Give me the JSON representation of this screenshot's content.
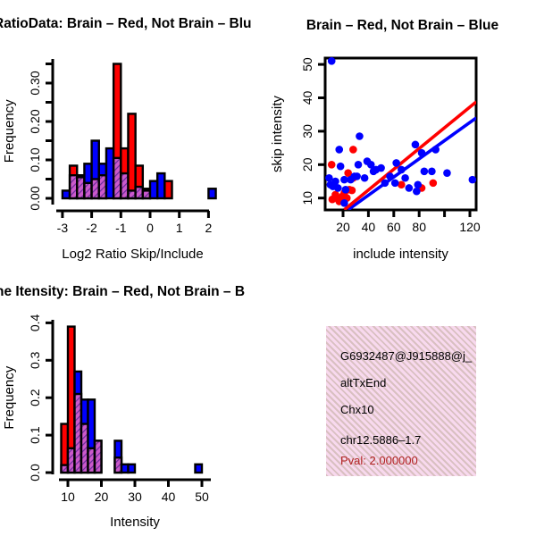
{
  "figure": {
    "background": "#ffffff",
    "red": "#ff0000",
    "blue": "#0000ff",
    "hatch_base": "#cb59cb",
    "hatch_stripe": "#6a2d9c"
  },
  "chart_data": [
    {
      "type": "bar",
      "panel": "top-left",
      "title": "RatioData: Brain – Red, Not Brain – Blu",
      "xlabel": "Log2 Ratio Skip/Include",
      "ylabel": "Frequency",
      "bin_width": 0.25,
      "xlim": [
        -3.2,
        2.3
      ],
      "ylim": [
        0,
        0.35
      ],
      "x_ticks": [
        {
          "v": -3,
          "label": "-3"
        },
        {
          "v": -2,
          "label": "-2"
        },
        {
          "v": -1,
          "label": "-1"
        },
        {
          "v": 0,
          "label": "0"
        },
        {
          "v": 1,
          "label": "1"
        },
        {
          "v": 2,
          "label": "2"
        }
      ],
      "y_ticks": [
        {
          "v": 0.0,
          "label": "0.00"
        },
        {
          "v": 0.05,
          "label": ""
        },
        {
          "v": 0.1,
          "label": "0.10"
        },
        {
          "v": 0.15,
          "label": ""
        },
        {
          "v": 0.2,
          "label": "0.20"
        },
        {
          "v": 0.25,
          "label": ""
        },
        {
          "v": 0.3,
          "label": "0.30"
        },
        {
          "v": 0.35,
          "label": ""
        }
      ],
      "series": [
        {
          "name": "Brain",
          "color": "#ff0000"
        },
        {
          "name": "Not Brain",
          "color": "#0000ff"
        }
      ],
      "bars": [
        {
          "x": -3.0,
          "red": 0.0,
          "blue": 0.02
        },
        {
          "x": -2.75,
          "red": 0.085,
          "blue": 0.06
        },
        {
          "x": -2.5,
          "red": 0.055,
          "blue": 0.06
        },
        {
          "x": -2.25,
          "red": 0.04,
          "blue": 0.09
        },
        {
          "x": -2.0,
          "red": 0.05,
          "blue": 0.15
        },
        {
          "x": -1.75,
          "red": 0.06,
          "blue": 0.09
        },
        {
          "x": -1.5,
          "red": 0.0,
          "blue": 0.13
        },
        {
          "x": -1.25,
          "red": 0.35,
          "blue": 0.105
        },
        {
          "x": -1.0,
          "red": 0.13,
          "blue": 0.065
        },
        {
          "x": -0.75,
          "red": 0.22,
          "blue": 0.02
        },
        {
          "x": -0.5,
          "red": 0.085,
          "blue": 0.03
        },
        {
          "x": -0.25,
          "red": 0.02,
          "blue": 0.025
        },
        {
          "x": 0.0,
          "red": 0.0,
          "blue": 0.045
        },
        {
          "x": 0.25,
          "red": 0.0,
          "blue": 0.065
        },
        {
          "x": 0.5,
          "red": 0.045,
          "blue": 0.0
        },
        {
          "x": 2.0,
          "red": 0.0,
          "blue": 0.025
        }
      ]
    },
    {
      "type": "scatter",
      "panel": "top-right",
      "title": "Brain – Red, Not Brain – Blue",
      "xlabel": "include intensity",
      "ylabel": "skip intensity",
      "xlim": [
        6,
        125
      ],
      "ylim": [
        6.4,
        52
      ],
      "x_ticks": [
        {
          "v": 20,
          "label": "20"
        },
        {
          "v": 40,
          "label": "40"
        },
        {
          "v": 60,
          "label": "60"
        },
        {
          "v": 80,
          "label": "80"
        },
        {
          "v": 100,
          "label": ""
        },
        {
          "v": 120,
          "label": "120"
        }
      ],
      "y_ticks": [
        {
          "v": 10,
          "label": "10"
        },
        {
          "v": 20,
          "label": "20"
        },
        {
          "v": 30,
          "label": "30"
        },
        {
          "v": 40,
          "label": "40"
        },
        {
          "v": 50,
          "label": "50"
        }
      ],
      "blue_points": [
        [
          11,
          51
        ],
        [
          17,
          24.5
        ],
        [
          33,
          28.5
        ],
        [
          18,
          19.5
        ],
        [
          32,
          20
        ],
        [
          39,
          21
        ],
        [
          42,
          20
        ],
        [
          44,
          18
        ],
        [
          46,
          18.5
        ],
        [
          50,
          19
        ],
        [
          31,
          16.5
        ],
        [
          37,
          16
        ],
        [
          9,
          16
        ],
        [
          14,
          15
        ],
        [
          21,
          15.5
        ],
        [
          26,
          15.5
        ],
        [
          29,
          16.5
        ],
        [
          10,
          14
        ],
        [
          12,
          13.5
        ],
        [
          16,
          13
        ],
        [
          22,
          12.5
        ],
        [
          21,
          8.5
        ],
        [
          53,
          14.5
        ],
        [
          57,
          16.5
        ],
        [
          62,
          20.5
        ],
        [
          61,
          14.5
        ],
        [
          66,
          18.5
        ],
        [
          69,
          16
        ],
        [
          72,
          13
        ],
        [
          77,
          26
        ],
        [
          78,
          12
        ],
        [
          79,
          14
        ],
        [
          82,
          23.5
        ],
        [
          84,
          18
        ],
        [
          90,
          18
        ],
        [
          93,
          24.5
        ],
        [
          102,
          17.5
        ],
        [
          122,
          15.5
        ]
      ],
      "red_points": [
        [
          11,
          20
        ],
        [
          28,
          24.5
        ],
        [
          24,
          17.5
        ],
        [
          28,
          16
        ],
        [
          14,
          11
        ],
        [
          15,
          10
        ],
        [
          19.5,
          10.5
        ],
        [
          11.5,
          9.6
        ],
        [
          17,
          9
        ],
        [
          23,
          10
        ],
        [
          21,
          11.5
        ],
        [
          25,
          12.5
        ],
        [
          27,
          12.3
        ],
        [
          66,
          14
        ],
        [
          82,
          13
        ],
        [
          91,
          14.5
        ]
      ],
      "fit_lines": [
        {
          "name": "not-brain-fit",
          "color": "#0000ff",
          "x1": 24,
          "y1": 6.5,
          "x2": 125,
          "y2": 34.0
        },
        {
          "name": "brain-fit",
          "color": "#ff0000",
          "x1": 21,
          "y1": 6.5,
          "x2": 125,
          "y2": 38.8
        }
      ]
    },
    {
      "type": "bar",
      "panel": "bottom-left",
      "title": "ne Itensity: Brain – Red, Not Brain – B",
      "xlabel": "Intensity",
      "ylabel": "Frequency",
      "bin_width": 2,
      "xlim": [
        8,
        52
      ],
      "ylim": [
        0,
        0.4
      ],
      "x_ticks": [
        {
          "v": 10,
          "label": "10"
        },
        {
          "v": 20,
          "label": "20"
        },
        {
          "v": 30,
          "label": "30"
        },
        {
          "v": 40,
          "label": "40"
        },
        {
          "v": 50,
          "label": "50"
        }
      ],
      "y_ticks": [
        {
          "v": 0.0,
          "label": "0.0"
        },
        {
          "v": 0.1,
          "label": "0.1"
        },
        {
          "v": 0.2,
          "label": "0.2"
        },
        {
          "v": 0.3,
          "label": "0.3"
        },
        {
          "v": 0.4,
          "label": "0.4"
        }
      ],
      "series": [
        {
          "name": "Brain",
          "color": "#ff0000"
        },
        {
          "name": "Not Brain",
          "color": "#0000ff"
        }
      ],
      "bars": [
        {
          "x": 8,
          "red": 0.13,
          "blue": 0.02
        },
        {
          "x": 10,
          "red": 0.39,
          "blue": 0.065
        },
        {
          "x": 12,
          "red": 0.21,
          "blue": 0.27
        },
        {
          "x": 14,
          "red": 0.13,
          "blue": 0.195
        },
        {
          "x": 16,
          "red": 0.065,
          "blue": 0.195
        },
        {
          "x": 18,
          "red": 0.085,
          "blue": 0.085
        },
        {
          "x": 24,
          "red": 0.04,
          "blue": 0.085
        },
        {
          "x": 26,
          "red": 0.0,
          "blue": 0.022
        },
        {
          "x": 28,
          "red": 0.0,
          "blue": 0.022
        },
        {
          "x": 48,
          "red": 0.0,
          "blue": 0.022
        }
      ]
    }
  ],
  "info_box": {
    "background": "#f8d9ee",
    "lines": [
      {
        "text": "G6932487@J915888@j_",
        "color": "#000000"
      },
      {
        "text": "altTxEnd",
        "color": "#000000"
      },
      {
        "text": "Chx10",
        "color": "#000000"
      },
      {
        "text": "chr12.5886–1.7",
        "color": "#000000"
      },
      {
        "text": "Pval: 2.000000",
        "color": "#b22222"
      }
    ]
  }
}
